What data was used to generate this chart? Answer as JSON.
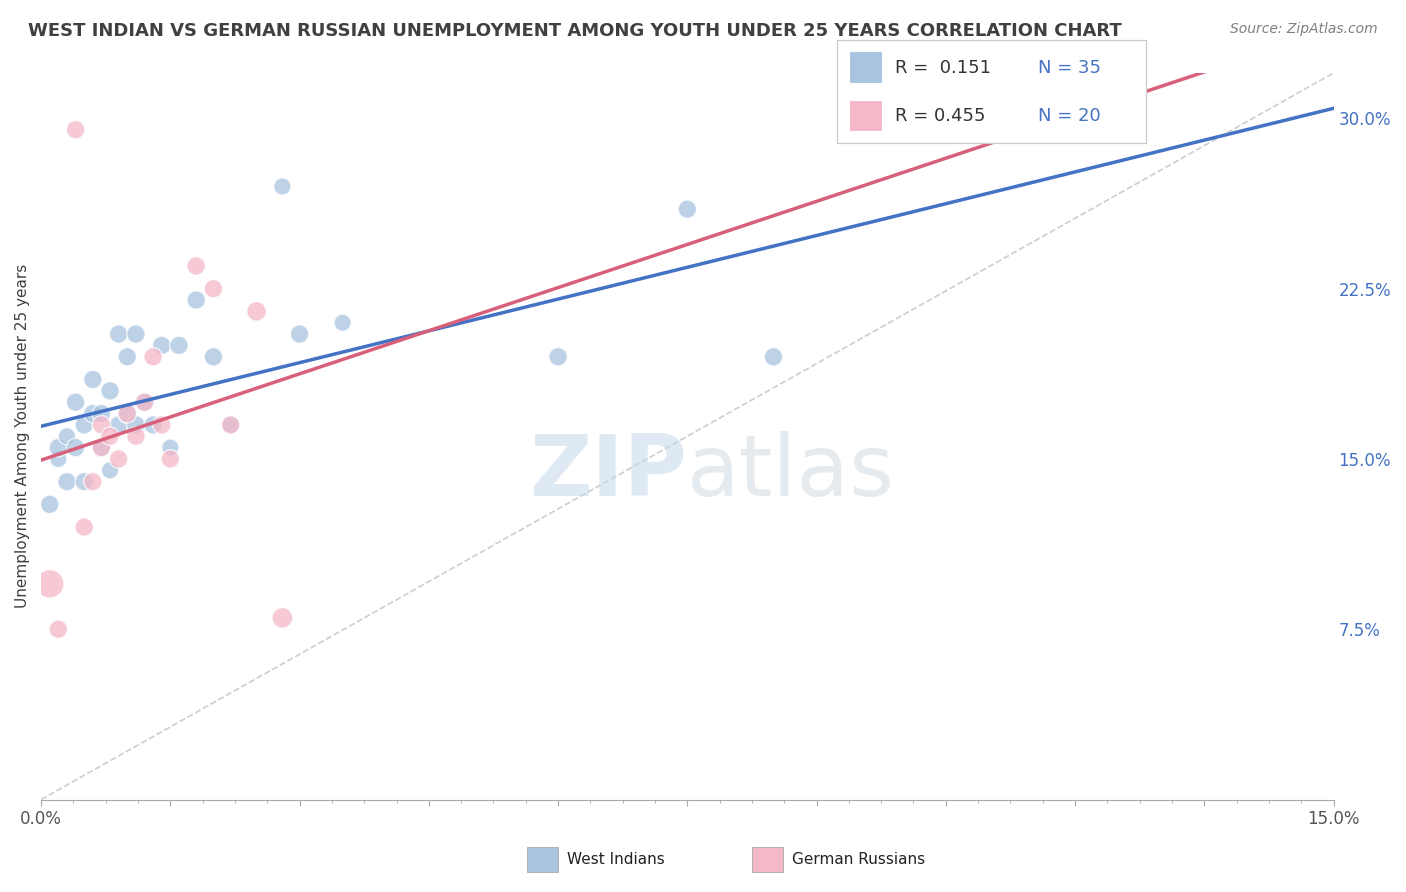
{
  "title": "WEST INDIAN VS GERMAN RUSSIAN UNEMPLOYMENT AMONG YOUTH UNDER 25 YEARS CORRELATION CHART",
  "source": "Source: ZipAtlas.com",
  "ylabel": "Unemployment Among Youth under 25 years",
  "xlabel_west": "West Indians",
  "xlabel_german": "German Russians",
  "xlim": [
    0.0,
    0.15
  ],
  "ylim": [
    0.0,
    0.32
  ],
  "r_west": 0.151,
  "n_west": 35,
  "r_german": 0.455,
  "n_german": 20,
  "west_color": "#a8c4e0",
  "german_color": "#f4b8c8",
  "west_line_color": "#4472c4",
  "german_line_color": "#d9607a",
  "diagonal_color": "#c8c8c8",
  "background_color": "#ffffff",
  "grid_color": "#d0d8e8",
  "west_points_x": [
    0.001,
    0.002,
    0.002,
    0.003,
    0.003,
    0.004,
    0.004,
    0.005,
    0.005,
    0.006,
    0.006,
    0.007,
    0.007,
    0.008,
    0.008,
    0.009,
    0.009,
    0.01,
    0.01,
    0.011,
    0.011,
    0.012,
    0.013,
    0.014,
    0.015,
    0.016,
    0.018,
    0.02,
    0.022,
    0.028,
    0.03,
    0.035,
    0.06,
    0.075,
    0.085
  ],
  "west_points_y": [
    0.13,
    0.15,
    0.155,
    0.14,
    0.16,
    0.155,
    0.175,
    0.14,
    0.165,
    0.17,
    0.185,
    0.155,
    0.17,
    0.145,
    0.18,
    0.165,
    0.205,
    0.17,
    0.195,
    0.165,
    0.205,
    0.175,
    0.165,
    0.2,
    0.155,
    0.2,
    0.22,
    0.195,
    0.165,
    0.27,
    0.205,
    0.21,
    0.195,
    0.26,
    0.195
  ],
  "west_sizes": [
    80,
    70,
    80,
    80,
    70,
    80,
    80,
    80,
    80,
    80,
    80,
    80,
    80,
    70,
    80,
    80,
    80,
    90,
    80,
    80,
    80,
    90,
    80,
    80,
    70,
    80,
    80,
    80,
    70,
    70,
    80,
    70,
    80,
    80,
    80
  ],
  "german_points_x": [
    0.001,
    0.002,
    0.004,
    0.005,
    0.006,
    0.007,
    0.007,
    0.008,
    0.009,
    0.01,
    0.011,
    0.012,
    0.013,
    0.014,
    0.015,
    0.018,
    0.02,
    0.022,
    0.025,
    0.028
  ],
  "german_points_y": [
    0.095,
    0.075,
    0.295,
    0.12,
    0.14,
    0.155,
    0.165,
    0.16,
    0.15,
    0.17,
    0.16,
    0.175,
    0.195,
    0.165,
    0.15,
    0.235,
    0.225,
    0.165,
    0.215,
    0.08
  ],
  "german_sizes": [
    190,
    80,
    80,
    80,
    80,
    80,
    80,
    80,
    80,
    80,
    80,
    80,
    80,
    80,
    80,
    80,
    80,
    80,
    90,
    100
  ],
  "title_color": "#404040",
  "source_color": "#808080",
  "tick_color": "#555555",
  "ytick_color": "#4472c4"
}
